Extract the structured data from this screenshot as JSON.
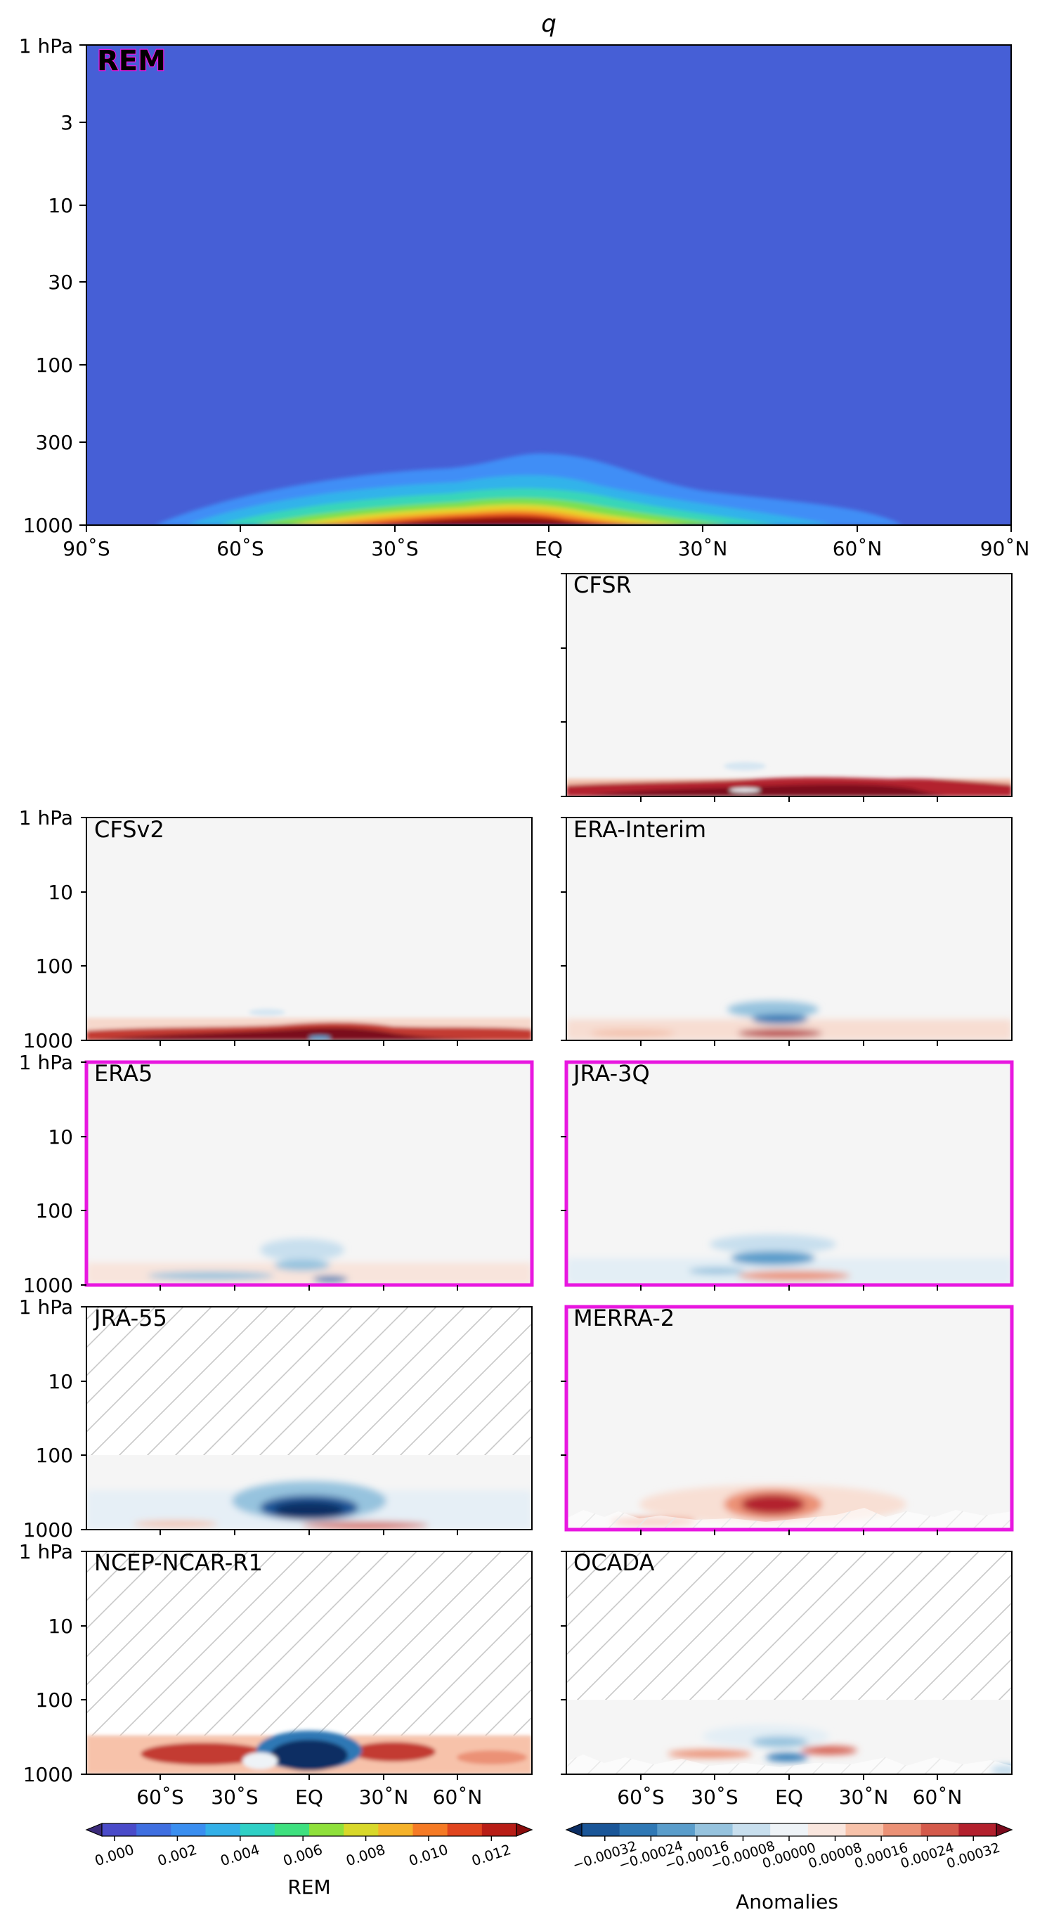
{
  "figure": {
    "title": "q"
  },
  "chart_data": [
    {
      "type": "heatmap",
      "title": "",
      "panel_label": "REM",
      "highlighted": false,
      "yaxis": {
        "scale": "log",
        "range_hPa": [
          1000,
          1
        ],
        "ticks": [
          1,
          3,
          10,
          30,
          100,
          300,
          1000
        ],
        "tick_labels": [
          "1 hPa",
          "3",
          "10",
          "30",
          "100",
          "300",
          "1000"
        ]
      },
      "xaxis": {
        "range": [
          -90,
          90
        ],
        "ticks": [
          -90,
          -60,
          -30,
          0,
          30,
          60,
          90
        ],
        "tick_labels": [
          "90˚S",
          "60˚S",
          "30˚S",
          "EQ",
          "30˚N",
          "60˚N",
          "90˚N"
        ]
      },
      "description_values": {
        "max_near_surface_kg_per_kg": 0.013,
        "max_lat": -5,
        "background": 0.0
      }
    },
    {
      "type": "heatmap",
      "panel_label": "CFSR",
      "highlighted": false,
      "hatched_above_hPa": null
    },
    {
      "type": "heatmap",
      "panel_label": "CFSv2",
      "highlighted": false,
      "hatched_above_hPa": null
    },
    {
      "type": "heatmap",
      "panel_label": "ERA-Interim",
      "highlighted": false,
      "hatched_above_hPa": null
    },
    {
      "type": "heatmap",
      "panel_label": "ERA5",
      "highlighted": true,
      "hatched_above_hPa": null
    },
    {
      "type": "heatmap",
      "panel_label": "JRA-3Q",
      "highlighted": true,
      "hatched_above_hPa": null
    },
    {
      "type": "heatmap",
      "panel_label": "JRA-55",
      "highlighted": false,
      "hatched_above_hPa": 100
    },
    {
      "type": "heatmap",
      "panel_label": "MERRA-2",
      "highlighted": true,
      "hatched_above_hPa": null
    },
    {
      "type": "heatmap",
      "panel_label": "NCEP-NCAR-R1",
      "highlighted": false,
      "hatched_above_hPa": 300
    },
    {
      "type": "heatmap",
      "panel_label": "OCADA",
      "highlighted": false,
      "hatched_above_hPa": 100
    }
  ],
  "small_axes": {
    "y_tick_labels": [
      "1 hPa",
      "10",
      "100",
      "1000"
    ],
    "x_tick_labels": [
      "60˚S",
      "30˚S",
      "EQ",
      "30˚N",
      "60˚N"
    ]
  },
  "colorbars": {
    "rem": {
      "label": "REM",
      "tick_labels": [
        "0.000",
        "0.002",
        "0.004",
        "0.006",
        "0.008",
        "0.010",
        "0.012"
      ],
      "colors": [
        "#3b2a7a",
        "#4a4bc9",
        "#3f6fe0",
        "#3a8ef0",
        "#33b0e8",
        "#2fd0c6",
        "#3ee07f",
        "#8fe03b",
        "#d8d82a",
        "#f5b22a",
        "#f57a25",
        "#e0451f",
        "#b81d16",
        "#8a0c0c"
      ]
    },
    "anomalies": {
      "label": "Anomalies",
      "tick_labels": [
        "−0.00032",
        "−0.00024",
        "−0.00016",
        "−0.00008",
        "0.00000",
        "0.00008",
        "0.00016",
        "0.00024",
        "0.00032"
      ],
      "colors": [
        "#0b2d63",
        "#1a5698",
        "#2f78b5",
        "#5a9dcb",
        "#96c3de",
        "#c8dfee",
        "#eef3f7",
        "#f9e6de",
        "#f7c2aa",
        "#eb9176",
        "#d45a4b",
        "#b3202d",
        "#7a0a1c"
      ]
    }
  }
}
